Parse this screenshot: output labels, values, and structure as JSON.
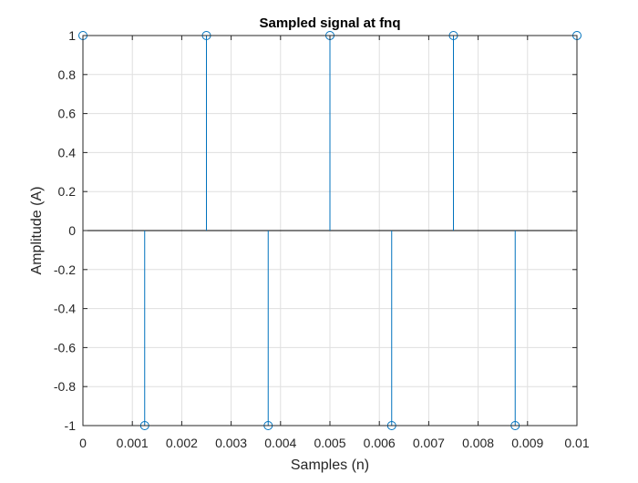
{
  "chart_data": {
    "type": "stem",
    "title": "Sampled signal at fnq",
    "xlabel": "Samples (n)",
    "ylabel": "Amplitude (A)",
    "xlim": [
      0,
      0.01
    ],
    "ylim": [
      -1,
      1
    ],
    "grid": true,
    "x_ticks": [
      0,
      0.001,
      0.002,
      0.003,
      0.004,
      0.005,
      0.006,
      0.007,
      0.008,
      0.009,
      0.01
    ],
    "x_tick_labels": [
      "0",
      "0.001",
      "0.002",
      "0.003",
      "0.004",
      "0.005",
      "0.006",
      "0.007",
      "0.008",
      "0.009",
      "0.01"
    ],
    "y_ticks": [
      1,
      0.8,
      0.6,
      0.4,
      0.2,
      0,
      -0.2,
      -0.4,
      -0.6,
      -0.8,
      -1
    ],
    "y_tick_labels": [
      "1",
      "0.8",
      "0.6",
      "0.4",
      "0.2",
      "0",
      "-0.2",
      "-0.4",
      "-0.6",
      "-0.8",
      "-1"
    ],
    "series": [
      {
        "x": [
          0,
          0.00125,
          0.0025,
          0.00375,
          0.005,
          0.00625,
          0.0075,
          0.00875,
          0.01
        ],
        "values": [
          1,
          -1,
          1,
          -1,
          1,
          -1,
          1,
          -1,
          1
        ],
        "color": "#0072bd"
      }
    ]
  }
}
